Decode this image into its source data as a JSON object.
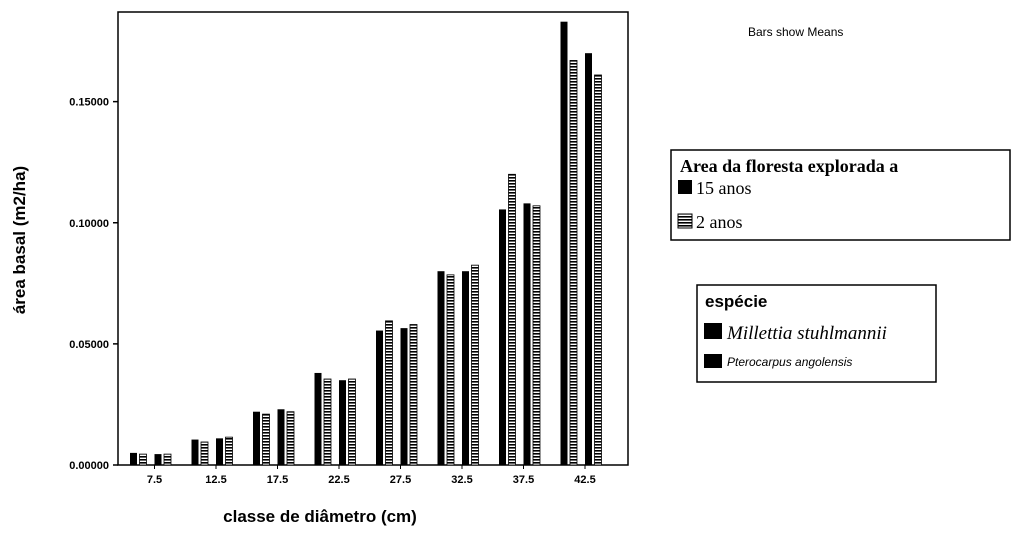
{
  "chart_data": {
    "type": "bar",
    "note": "Bars show Means",
    "xlabel": "classe de diâmetro (cm)",
    "ylabel": "área basal (m2/ha)",
    "categories": [
      "7.5",
      "12.5",
      "17.5",
      "22.5",
      "27.5",
      "32.5",
      "37.5",
      "42.5"
    ],
    "yticks": [
      "0.00000",
      "0.05000",
      "0.10000",
      "0.15000"
    ],
    "ylim": [
      0,
      0.187
    ],
    "series": [
      {
        "group": "Millettia stuhlmannii",
        "area": "15 anos",
        "values": [
          0.005,
          0.0105,
          0.022,
          0.038,
          0.0555,
          0.08,
          0.1055,
          0.183
        ]
      },
      {
        "group": "Millettia stuhlmannii",
        "area": "2 anos",
        "values": [
          0.0045,
          0.0095,
          0.021,
          0.0355,
          0.0595,
          0.0785,
          0.12,
          0.167
        ]
      },
      {
        "group": "Pterocarpus angolensis",
        "area": "15 anos",
        "values": [
          0.0045,
          0.011,
          0.023,
          0.035,
          0.0565,
          0.08,
          0.108,
          0.17
        ]
      },
      {
        "group": "Pterocarpus angolensis",
        "area": "2 anos",
        "values": [
          0.0045,
          0.0115,
          0.022,
          0.0355,
          0.058,
          0.0825,
          0.107,
          0.161
        ]
      }
    ],
    "legend_area": {
      "title": "Area da floresta explorada a",
      "entries": [
        "15 anos",
        "2 anos"
      ]
    },
    "legend_species": {
      "title": "espécie",
      "entries": [
        "Millettia stuhlmannii",
        "Pterocarpus angolensis"
      ]
    },
    "colors": {
      "bar": "#000000",
      "hatch_bg": "#ffffff",
      "hatch_line": "#000000"
    }
  }
}
